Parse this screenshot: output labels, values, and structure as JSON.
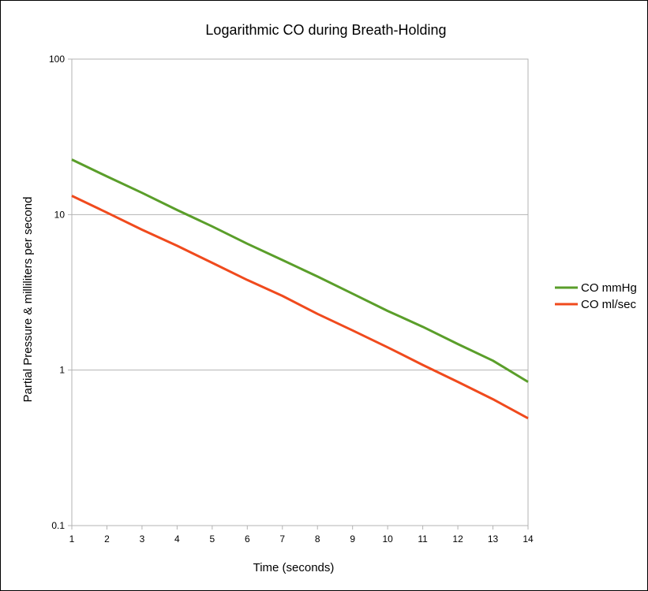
{
  "chart_data": {
    "type": "line",
    "title": "Logarithmic CO during Breath-Holding",
    "xlabel": "Time (seconds)",
    "ylabel": "Partial Pressure & milliliters per second",
    "x": [
      1,
      2,
      3,
      4,
      5,
      6,
      7,
      8,
      9,
      10,
      11,
      12,
      13,
      14
    ],
    "x_ticks": [
      "1",
      "2",
      "3",
      "4",
      "5",
      "6",
      "7",
      "8",
      "9",
      "10",
      "11",
      "12",
      "13",
      "14"
    ],
    "xlim": [
      1,
      14
    ],
    "y_scale": "log",
    "ylim": [
      0.1,
      100
    ],
    "y_ticks": [
      0.1,
      1,
      10,
      100
    ],
    "y_tick_labels": [
      "0.1",
      "1",
      "10",
      "100"
    ],
    "grid": "horizontal",
    "legend_position": "right",
    "series": [
      {
        "name": "CO mmHg",
        "color": "#5a9e2a",
        "values": [
          22.6,
          17.6,
          13.8,
          10.7,
          8.4,
          6.5,
          5.1,
          4.0,
          3.1,
          2.4,
          1.9,
          1.47,
          1.15,
          0.84
        ]
      },
      {
        "name": "CO ml/sec",
        "color": "#f04a1d",
        "values": [
          13.2,
          10.3,
          8.0,
          6.3,
          4.9,
          3.8,
          3.0,
          2.3,
          1.8,
          1.4,
          1.08,
          0.84,
          0.65,
          0.49
        ]
      }
    ]
  }
}
